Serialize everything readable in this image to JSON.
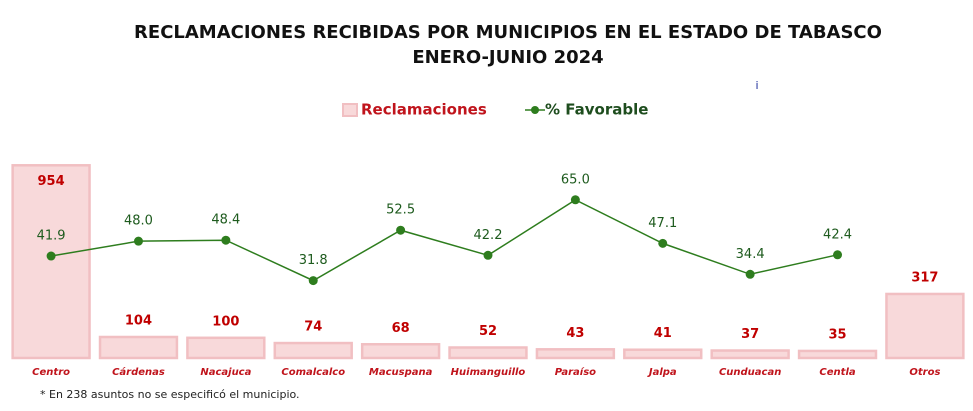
{
  "chart_data": {
    "type": "combo",
    "title": "RECLAMACIONES RECIBIDAS POR MUNICIPIOS EN EL ESTADO DE TABASCO",
    "subtitle": "ENERO-JUNIO 2024",
    "annotation": "i",
    "footnote": "* En 238 asuntos no se especificó el municipio.",
    "categories": [
      "Centro",
      "Cárdenas",
      "Nacajuca",
      "Comalcalco",
      "Macuspana",
      "Huimanguillo",
      "Paraíso",
      "Jalpa",
      "Cunduacan",
      "Centla",
      "Otros"
    ],
    "series": [
      {
        "name": "Reclamaciones",
        "type": "bar",
        "color": "#f8d9da",
        "values": [
          954,
          104,
          100,
          74,
          68,
          52,
          43,
          41,
          37,
          35,
          317
        ]
      },
      {
        "name": "% Favorable",
        "type": "line",
        "axis": "y2",
        "color": "#2e7d1e",
        "values": [
          41.9,
          48,
          48.4,
          31.8,
          52.5,
          42.2,
          65,
          47.1,
          34.4,
          42.4,
          null
        ],
        "value_labels": [
          "41.9",
          "48.0",
          "48.4",
          "31.8",
          "52.5",
          "42.2",
          "65.0",
          "47.1",
          "34.4",
          "42.4",
          null
        ]
      }
    ],
    "ylim": [
      0,
      1000
    ],
    "y2lim": [
      0,
      83
    ],
    "legend": "top"
  }
}
